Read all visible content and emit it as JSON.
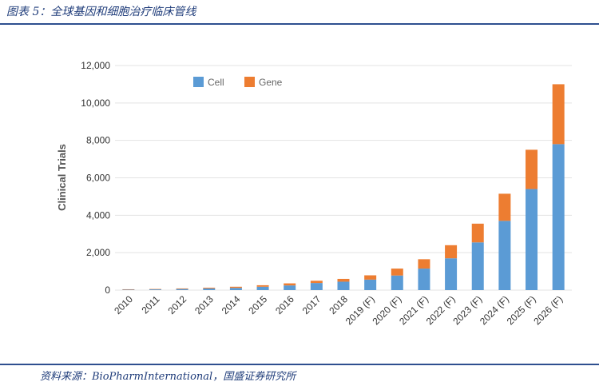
{
  "header": {
    "title": "图表 5：全球基因和细胞治疗临床管线"
  },
  "footer": {
    "source": "资料来源：BioPharmInternational，国盛证券研究所"
  },
  "chart_data": {
    "type": "bar",
    "stacked": true,
    "categories": [
      "2010",
      "2011",
      "2012",
      "2013",
      "2014",
      "2015",
      "2016",
      "2017",
      "2018",
      "2019 (F)",
      "2020 (F)",
      "2021 (F)",
      "2022 (F)",
      "2023 (F)",
      "2024 (F)",
      "2025 (F)",
      "2026 (F)"
    ],
    "series": [
      {
        "name": "Cell",
        "color": "#5b9bd5",
        "values": [
          30,
          40,
          60,
          90,
          120,
          180,
          250,
          380,
          450,
          560,
          780,
          1150,
          1700,
          2550,
          3700,
          5400,
          7800
        ]
      },
      {
        "name": "Gene",
        "color": "#ed7d31",
        "values": [
          15,
          20,
          30,
          40,
          60,
          80,
          110,
          120,
          150,
          230,
          370,
          500,
          700,
          1000,
          1450,
          2100,
          3200
        ]
      }
    ],
    "ylabel": "Clinical Trials",
    "ylim": [
      0,
      12000
    ],
    "yticks": [
      "0",
      "2,000",
      "4,000",
      "6,000",
      "8,000",
      "10,000",
      "12,000"
    ],
    "ytick_values": [
      0,
      2000,
      4000,
      6000,
      8000,
      10000,
      12000
    ],
    "grid": true,
    "legend": "top-left"
  }
}
